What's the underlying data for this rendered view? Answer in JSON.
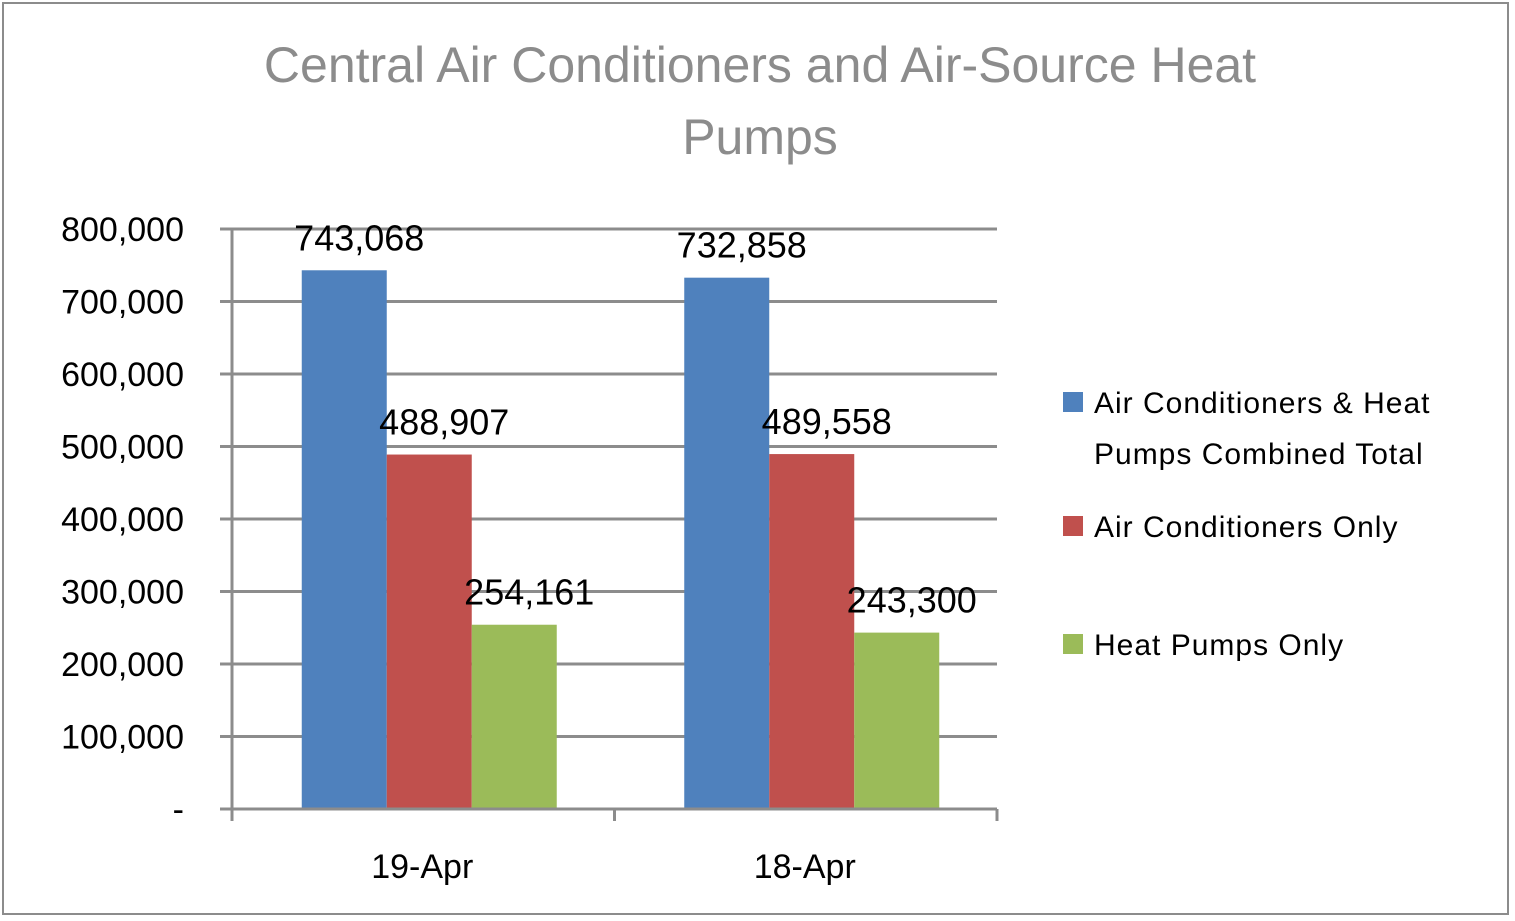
{
  "chart_data": {
    "type": "bar",
    "title_lines": [
      "Central Air Conditioners and Air-Source Heat",
      "Pumps"
    ],
    "categories": [
      "19-Apr",
      "18-Apr"
    ],
    "series": [
      {
        "name": "Air Conditioners & Heat Pumps Combined Total",
        "legend_lines": [
          "Air Conditioners & Heat",
          "Pumps Combined Total"
        ],
        "color": "#4f81bd",
        "values": [
          743068,
          732858
        ],
        "labels": [
          "743,068",
          "732,858"
        ]
      },
      {
        "name": "Air Conditioners Only",
        "legend_lines": [
          "Air Conditioners Only"
        ],
        "color": "#c0504d",
        "values": [
          488907,
          489558
        ],
        "labels": [
          "488,907",
          "489,558"
        ]
      },
      {
        "name": "Heat Pumps Only",
        "legend_lines": [
          "Heat Pumps Only"
        ],
        "color": "#9bbb59",
        "values": [
          254161,
          243300
        ],
        "labels": [
          "254,161",
          "243,300"
        ]
      }
    ],
    "ylim": [
      0,
      800000
    ],
    "yticks": [
      0,
      100000,
      200000,
      300000,
      400000,
      500000,
      600000,
      700000,
      800000
    ],
    "ytick_labels": [
      "-",
      "100,000",
      "200,000",
      "300,000",
      "400,000",
      "500,000",
      "600,000",
      "700,000",
      "800,000"
    ],
    "grid": true,
    "legend_position": "right"
  }
}
